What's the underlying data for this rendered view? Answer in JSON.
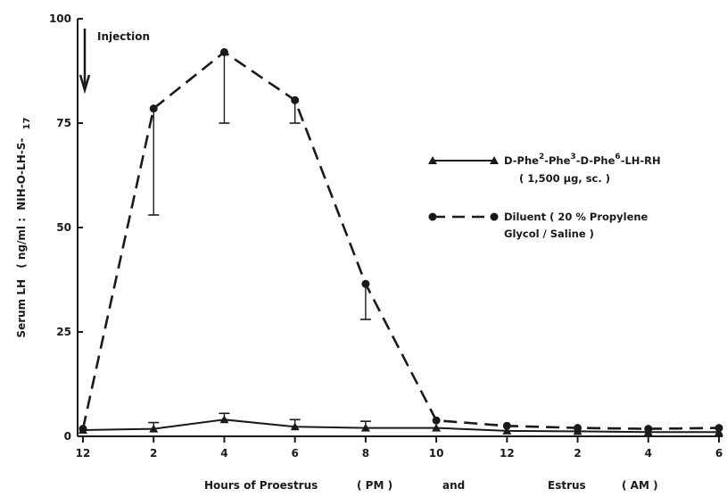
{
  "chart_data": {
    "type": "line",
    "title": "",
    "xlabel": {
      "part1": "Hours of Proestrus",
      "part2": "( PM )",
      "part3": "and",
      "part4": "Estrus",
      "part5": "( AM )"
    },
    "ylabel": {
      "main": "Serum LH",
      "unit": "( ng/ml :",
      "standard": "NIH-O-LH-S-",
      "standard_sub": "17"
    },
    "ylim": [
      0,
      100
    ],
    "yticks": [
      "0",
      "25",
      "50",
      "75",
      "100"
    ],
    "x_tick_labels": [
      "12",
      "2",
      "4",
      "6",
      "8",
      "10",
      "12",
      "2",
      "4",
      "6"
    ],
    "grid": false,
    "legend_position": "right",
    "series": [
      {
        "name": "D-Phe2-Phe3-D-Phe6-LH-RH (1,500 µg, sc.)",
        "marker": "triangle",
        "line": "solid",
        "values": [
          1.5,
          1.8,
          4.0,
          2.3,
          2.0,
          2.0,
          1.3,
          1.2,
          1.0,
          1.0
        ],
        "error_upper": [
          null,
          3.3,
          5.5,
          4.0,
          3.6,
          null,
          null,
          null,
          null,
          null
        ]
      },
      {
        "name": "Diluent (20 % Propylene Glycol / Saline)",
        "marker": "circle",
        "line": "dashed",
        "values": [
          1.8,
          78.5,
          92,
          80.5,
          36.5,
          3.8,
          2.5,
          2.0,
          1.8,
          2.0
        ],
        "error_lower": [
          null,
          53,
          75,
          75,
          28,
          null,
          null,
          null,
          null,
          null
        ]
      }
    ],
    "legend": [
      {
        "series": 0,
        "text_parts": [
          "D-Phe",
          "2",
          "-Phe",
          "3",
          "-D-Phe",
          "6",
          "-LH-RH"
        ],
        "line2": "( 1,500 µg, sc. )"
      },
      {
        "series": 1,
        "line1": "Diluent   ( 20 % Propylene",
        "line2": "Glycol / Saline )"
      }
    ],
    "annotations": [
      {
        "text": "Injection",
        "arrow": "down",
        "at_x_index": 0
      }
    ]
  }
}
